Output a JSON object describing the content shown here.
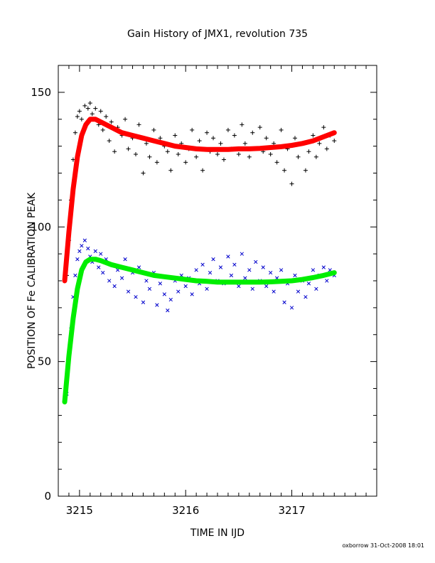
{
  "chart_data": {
    "type": "scatter",
    "title": "Gain History of JMX1, revolution 735",
    "xlabel": "TIME IN IJD",
    "ylabel": "POSITION OF Fe CALIBRATION PEAK",
    "xlim": [
      3214.8,
      3217.8
    ],
    "ylim": [
      0,
      160
    ],
    "xticks": [
      3215,
      3216,
      3217
    ],
    "yticks": [
      0,
      50,
      100,
      150
    ],
    "grid": false,
    "legend": "none",
    "series": [
      {
        "marker": "plus",
        "color": "#000000",
        "x": [
          3214.88,
          3214.9,
          3214.92,
          3214.94,
          3214.96,
          3214.98,
          3215.0,
          3215.02,
          3215.05,
          3215.08,
          3215.1,
          3215.12,
          3215.15,
          3215.18,
          3215.2,
          3215.22,
          3215.25,
          3215.28,
          3215.3,
          3215.33,
          3215.36,
          3215.4,
          3215.43,
          3215.46,
          3215.5,
          3215.53,
          3215.56,
          3215.6,
          3215.63,
          3215.66,
          3215.7,
          3215.73,
          3215.76,
          3215.8,
          3215.83,
          3215.86,
          3215.9,
          3215.93,
          3215.96,
          3216.0,
          3216.03,
          3216.06,
          3216.1,
          3216.13,
          3216.16,
          3216.2,
          3216.23,
          3216.26,
          3216.3,
          3216.33,
          3216.36,
          3216.4,
          3216.43,
          3216.46,
          3216.5,
          3216.53,
          3216.56,
          3216.6,
          3216.63,
          3216.66,
          3216.7,
          3216.73,
          3216.76,
          3216.8,
          3216.83,
          3216.86,
          3216.9,
          3216.93,
          3216.96,
          3217.0,
          3217.03,
          3217.06,
          3217.1,
          3217.13,
          3217.16,
          3217.2,
          3217.23,
          3217.26,
          3217.3,
          3217.33,
          3217.36,
          3217.4
        ],
        "y": [
          82,
          95,
          110,
          125,
          135,
          141,
          143,
          140,
          145,
          144,
          146,
          142,
          144,
          138,
          143,
          136,
          141,
          132,
          139,
          128,
          137,
          134,
          140,
          129,
          133,
          127,
          138,
          120,
          131,
          126,
          136,
          124,
          133,
          130,
          128,
          121,
          134,
          127,
          131,
          124,
          129,
          136,
          126,
          132,
          121,
          135,
          128,
          133,
          127,
          131,
          125,
          136,
          129,
          134,
          127,
          138,
          131,
          126,
          135,
          129,
          137,
          128,
          133,
          127,
          131,
          124,
          136,
          121,
          129,
          116,
          133,
          126,
          131,
          121,
          128,
          134,
          126,
          131,
          137,
          129,
          134,
          132
        ]
      },
      {
        "marker": "x",
        "color": "#0000cc",
        "x": [
          3214.88,
          3214.9,
          3214.92,
          3214.94,
          3214.96,
          3214.98,
          3215.0,
          3215.02,
          3215.05,
          3215.08,
          3215.1,
          3215.12,
          3215.15,
          3215.18,
          3215.2,
          3215.22,
          3215.25,
          3215.28,
          3215.3,
          3215.33,
          3215.36,
          3215.4,
          3215.43,
          3215.46,
          3215.5,
          3215.53,
          3215.56,
          3215.6,
          3215.63,
          3215.66,
          3215.7,
          3215.73,
          3215.76,
          3215.8,
          3215.83,
          3215.86,
          3215.9,
          3215.93,
          3215.96,
          3216.0,
          3216.03,
          3216.06,
          3216.1,
          3216.13,
          3216.16,
          3216.2,
          3216.23,
          3216.26,
          3216.3,
          3216.33,
          3216.36,
          3216.4,
          3216.43,
          3216.46,
          3216.5,
          3216.53,
          3216.56,
          3216.6,
          3216.63,
          3216.66,
          3216.7,
          3216.73,
          3216.76,
          3216.8,
          3216.83,
          3216.86,
          3216.9,
          3216.93,
          3216.96,
          3217.0,
          3217.03,
          3217.06,
          3217.1,
          3217.13,
          3217.16,
          3217.2,
          3217.23,
          3217.26,
          3217.3,
          3217.33,
          3217.36,
          3217.4
        ],
        "y": [
          38,
          50,
          62,
          74,
          82,
          88,
          91,
          93,
          95,
          92,
          89,
          87,
          91,
          85,
          90,
          83,
          88,
          80,
          86,
          78,
          84,
          81,
          88,
          76,
          83,
          74,
          85,
          72,
          80,
          77,
          83,
          71,
          79,
          75,
          69,
          73,
          80,
          76,
          82,
          78,
          81,
          75,
          84,
          79,
          86,
          77,
          83,
          88,
          80,
          85,
          79,
          89,
          82,
          86,
          78,
          90,
          81,
          84,
          77,
          87,
          80,
          85,
          78,
          83,
          76,
          81,
          84,
          72,
          79,
          70,
          82,
          76,
          80,
          74,
          79,
          84,
          77,
          82,
          85,
          80,
          84,
          82
        ]
      },
      {
        "marker": "line",
        "color": "#ff0000",
        "x": [
          3214.86,
          3214.9,
          3214.94,
          3214.98,
          3215.02,
          3215.06,
          3215.1,
          3215.15,
          3215.2,
          3215.3,
          3215.4,
          3215.5,
          3215.6,
          3215.7,
          3215.8,
          3215.9,
          3216.0,
          3216.1,
          3216.2,
          3216.3,
          3216.4,
          3216.5,
          3216.6,
          3216.7,
          3216.8,
          3216.9,
          3217.0,
          3217.1,
          3217.2,
          3217.3,
          3217.4
        ],
        "y": [
          80,
          98,
          114,
          126,
          134,
          138,
          140,
          140,
          139,
          137,
          135,
          134,
          133,
          132,
          131,
          130,
          129.5,
          129,
          128.8,
          128.8,
          128.8,
          129,
          129,
          129.2,
          129.5,
          129.8,
          130.3,
          131,
          132,
          133.5,
          135
        ]
      },
      {
        "marker": "line",
        "color": "#00ee00",
        "x": [
          3214.86,
          3214.9,
          3214.94,
          3214.98,
          3215.02,
          3215.06,
          3215.1,
          3215.15,
          3215.2,
          3215.3,
          3215.4,
          3215.5,
          3215.6,
          3215.7,
          3215.8,
          3215.9,
          3216.0,
          3216.1,
          3216.2,
          3216.3,
          3216.4,
          3216.5,
          3216.6,
          3216.7,
          3216.8,
          3216.9,
          3217.0,
          3217.1,
          3217.2,
          3217.3,
          3217.4
        ],
        "y": [
          35,
          52,
          66,
          77,
          84,
          87,
          88,
          88,
          87.5,
          86,
          85,
          84,
          83,
          82,
          81.5,
          81,
          80.5,
          80,
          79.8,
          79.5,
          79.5,
          79.5,
          79.5,
          79.5,
          79.6,
          79.8,
          80,
          80.5,
          81.2,
          82,
          83
        ]
      }
    ]
  },
  "footer": "oxborrow 31-Oct-2008 18:01"
}
